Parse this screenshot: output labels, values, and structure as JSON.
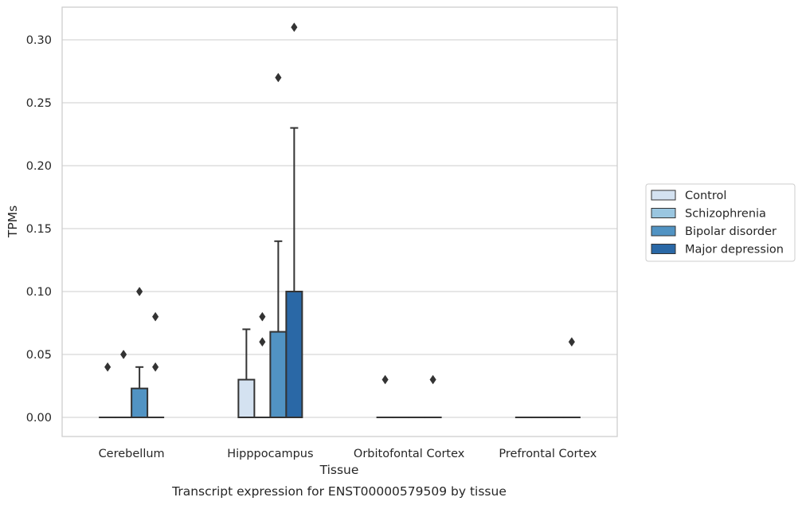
{
  "chart_data": {
    "type": "box",
    "title": "Transcript expression for ENST00000579509 by tissue",
    "xlabel": "Tissue",
    "ylabel": "TPMs",
    "ylim": [
      -0.015,
      0.327
    ],
    "yticks": [
      "0.00",
      "0.05",
      "0.10",
      "0.15",
      "0.20",
      "0.25",
      "0.30"
    ],
    "grid": true,
    "legend_position": "right",
    "categories": [
      "Cerebellum",
      "Hipppocampus",
      "Orbitofontal Cortex",
      "Prefrontal Cortex"
    ],
    "series": [
      {
        "name": "Control",
        "color": "#d4e2f1",
        "boxes": [
          {
            "min": 0,
            "q1": 0,
            "median": 0,
            "q3": 0,
            "max": 0,
            "outliers": [
              0.04
            ]
          },
          {
            "min": 0,
            "q1": 0,
            "median": 0,
            "q3": 0.03,
            "max": 0.07,
            "outliers": []
          },
          {
            "min": 0,
            "q1": 0,
            "median": 0,
            "q3": 0,
            "max": 0,
            "outliers": [
              0.03
            ]
          },
          {
            "min": 0,
            "q1": 0,
            "median": 0,
            "q3": 0,
            "max": 0,
            "outliers": []
          }
        ]
      },
      {
        "name": "Schizophrenia",
        "color": "#9ac6e0",
        "boxes": [
          {
            "min": 0,
            "q1": 0,
            "median": 0,
            "q3": 0,
            "max": 0,
            "outliers": [
              0.05
            ]
          },
          {
            "min": 0,
            "q1": 0,
            "median": 0,
            "q3": 0,
            "max": 0,
            "outliers": [
              0.06,
              0.08
            ]
          },
          {
            "min": 0,
            "q1": 0,
            "median": 0,
            "q3": 0,
            "max": 0,
            "outliers": []
          },
          {
            "min": 0,
            "q1": 0,
            "median": 0,
            "q3": 0,
            "max": 0,
            "outliers": []
          }
        ]
      },
      {
        "name": "Bipolar disorder",
        "color": "#5193c3",
        "boxes": [
          {
            "min": 0,
            "q1": 0,
            "median": 0,
            "q3": 0.023,
            "max": 0.04,
            "outliers": [
              0.1
            ]
          },
          {
            "min": 0,
            "q1": 0,
            "median": 0,
            "q3": 0.068,
            "max": 0.14,
            "outliers": [
              0.27
            ]
          },
          {
            "min": 0,
            "q1": 0,
            "median": 0,
            "q3": 0,
            "max": 0,
            "outliers": []
          },
          {
            "min": 0,
            "q1": 0,
            "median": 0,
            "q3": 0,
            "max": 0,
            "outliers": []
          }
        ]
      },
      {
        "name": "Major depression",
        "color": "#2a68a6",
        "boxes": [
          {
            "min": 0,
            "q1": 0,
            "median": 0,
            "q3": 0,
            "max": 0,
            "outliers": [
              0.04,
              0.08
            ]
          },
          {
            "min": 0,
            "q1": 0,
            "median": 0,
            "q3": 0.1,
            "max": 0.23,
            "outliers": [
              0.31
            ]
          },
          {
            "min": 0,
            "q1": 0,
            "median": 0,
            "q3": 0,
            "max": 0,
            "outliers": [
              0.03
            ]
          },
          {
            "min": 0,
            "q1": 0,
            "median": 0,
            "q3": 0,
            "max": 0,
            "outliers": [
              0.06
            ]
          }
        ]
      }
    ]
  }
}
